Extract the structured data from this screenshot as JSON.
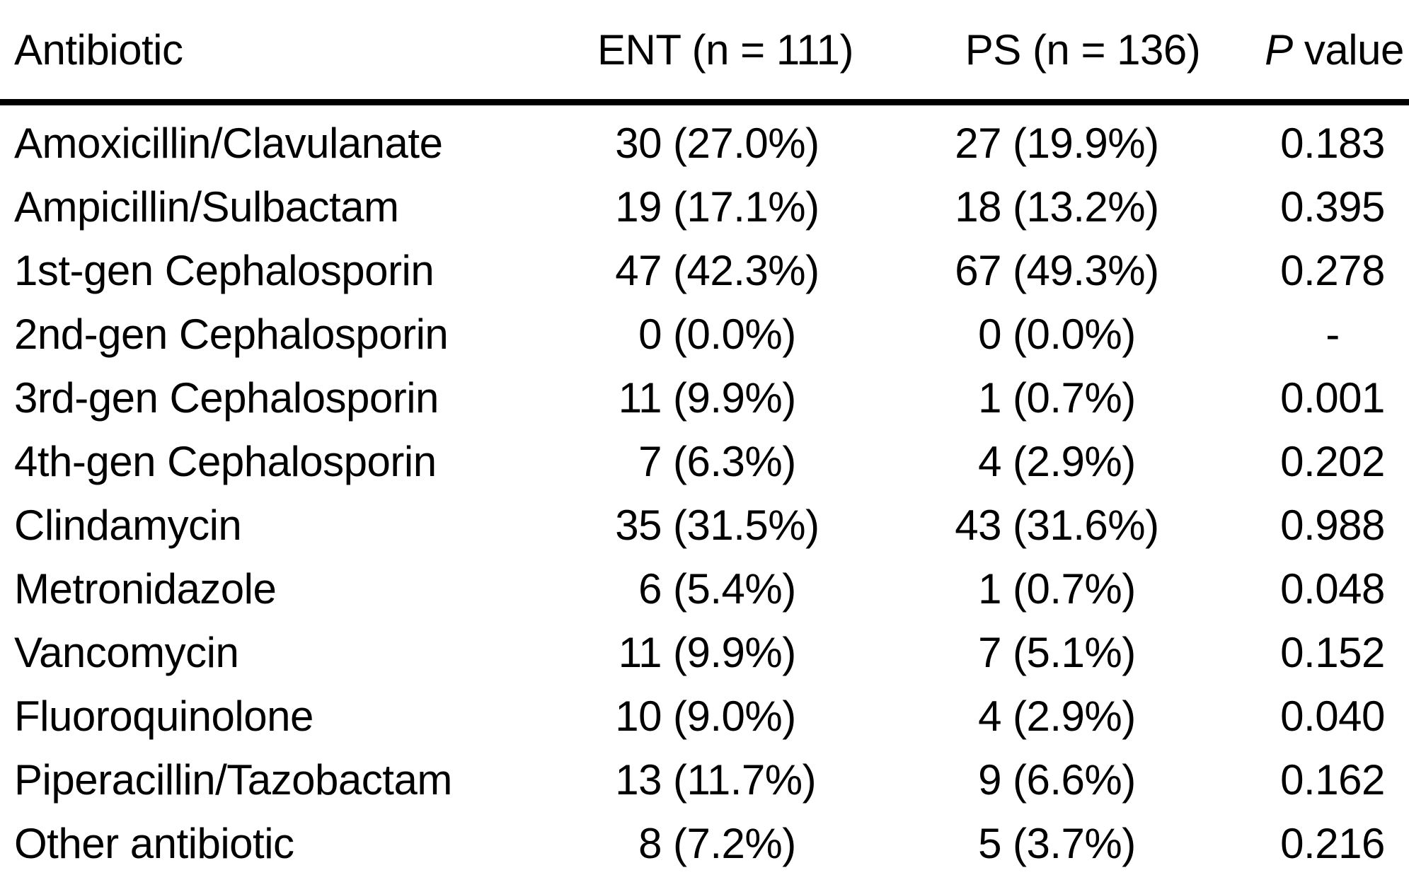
{
  "table": {
    "header": {
      "antibiotic": "Antibiotic",
      "ent": "ENT (n = 111)",
      "ps": "PS (n = 136)",
      "p_italic": "P",
      "p_rest": " value"
    },
    "rows": [
      {
        "antibiotic": "Amoxicillin/Clavulanate",
        "ent_count": "30",
        "ent_pct": "(27.0%)",
        "ps_count": "27",
        "ps_pct": "(19.9%)",
        "p": "0.183"
      },
      {
        "antibiotic": "Ampicillin/Sulbactam",
        "ent_count": "19",
        "ent_pct": "(17.1%)",
        "ps_count": "18",
        "ps_pct": "(13.2%)",
        "p": "0.395"
      },
      {
        "antibiotic": "1st-gen Cephalosporin",
        "ent_count": "47",
        "ent_pct": "(42.3%)",
        "ps_count": "67",
        "ps_pct": "(49.3%)",
        "p": "0.278"
      },
      {
        "antibiotic": "2nd-gen Cephalosporin",
        "ent_count": "0",
        "ent_pct": "(0.0%)",
        "ps_count": "0",
        "ps_pct": "(0.0%)",
        "p": "-"
      },
      {
        "antibiotic": "3rd-gen Cephalosporin",
        "ent_count": "11",
        "ent_pct": "(9.9%)",
        "ps_count": "1",
        "ps_pct": "(0.7%)",
        "p": "0.001"
      },
      {
        "antibiotic": "4th-gen Cephalosporin",
        "ent_count": "7",
        "ent_pct": "(6.3%)",
        "ps_count": "4",
        "ps_pct": "(2.9%)",
        "p": "0.202"
      },
      {
        "antibiotic": "Clindamycin",
        "ent_count": "35",
        "ent_pct": "(31.5%)",
        "ps_count": "43",
        "ps_pct": "(31.6%)",
        "p": "0.988"
      },
      {
        "antibiotic": "Metronidazole",
        "ent_count": "6",
        "ent_pct": "(5.4%)",
        "ps_count": "1",
        "ps_pct": "(0.7%)",
        "p": "0.048"
      },
      {
        "antibiotic": "Vancomycin",
        "ent_count": "11",
        "ent_pct": "(9.9%)",
        "ps_count": "7",
        "ps_pct": "(5.1%)",
        "p": "0.152"
      },
      {
        "antibiotic": "Fluoroquinolone",
        "ent_count": "10",
        "ent_pct": "(9.0%)",
        "ps_count": "4",
        "ps_pct": "(2.9%)",
        "p": "0.040"
      },
      {
        "antibiotic": "Piperacillin/Tazobactam",
        "ent_count": "13",
        "ent_pct": "(11.7%)",
        "ps_count": "9",
        "ps_pct": "(6.6%)",
        "p": "0.162"
      },
      {
        "antibiotic": "Other antibiotic",
        "ent_count": "8",
        "ent_pct": "(7.2%)",
        "ps_count": "5",
        "ps_pct": "(3.7%)",
        "p": "0.216"
      }
    ]
  },
  "colors": {
    "text": "#000000",
    "background": "#ffffff",
    "rule": "#000000"
  }
}
